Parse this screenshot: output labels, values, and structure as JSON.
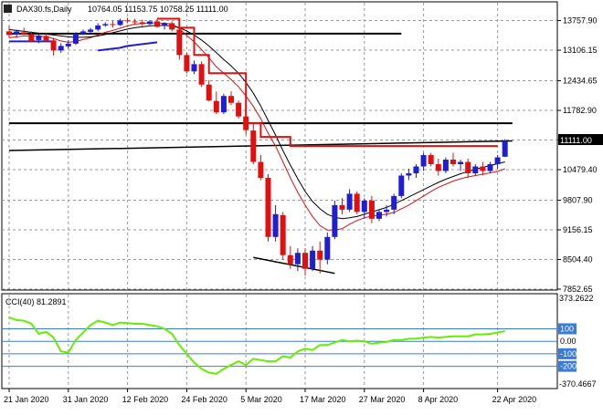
{
  "header": {
    "symbol": "DAX30.fs,Daily",
    "ohlc": "10764.05 11153.75 10758.25 11111.00"
  },
  "cci_panel": {
    "label": "CCI(40) 81.2891",
    "top_value": "373.2622",
    "bottom_value": "-370.4667",
    "levels": [
      "100",
      "0.00",
      "-100",
      "-200"
    ]
  },
  "price_badge": "11111.00",
  "colors": {
    "bull": "#1f1fd0",
    "bear": "#e01010",
    "ma_fast": "#e01010",
    "ma_slow": "#000000",
    "ma_blue": "#1f1fd0",
    "cci": "#66ee00",
    "level_line": "#3a7bd5",
    "badge_bg": "#000000"
  },
  "chart_data": {
    "type": "candlestick",
    "price_axis": {
      "ticks": [
        13757.9,
        13106.15,
        12434.65,
        11782.9,
        11131.15,
        10479.4,
        9807.9,
        9156.15,
        8504.4,
        7852.65
      ],
      "tick_labels": [
        "13757.90",
        "13106.15",
        "12434.65",
        "11782.90",
        "11131.15",
        "10479.40",
        "9807.90",
        "9156.15",
        "8504.40",
        "7852.65"
      ],
      "range": [
        7852.65,
        14150
      ]
    },
    "x_axis": {
      "tick_labels": [
        "21 Jan 2020",
        "31 Jan 2020",
        "12 Feb 2020",
        "24 Feb 2020",
        "5 Mar 2020",
        "17 Mar 2020",
        "27 Mar 2020",
        "8 Apr 2020",
        "22 Apr 2020"
      ],
      "tick_bar_index": [
        0,
        8,
        16,
        24,
        32,
        40,
        48,
        56,
        66
      ]
    },
    "candles": [
      {
        "o": 13520,
        "h": 13640,
        "l": 13380,
        "c": 13440
      },
      {
        "o": 13450,
        "h": 13560,
        "l": 13380,
        "c": 13520
      },
      {
        "o": 13500,
        "h": 13600,
        "l": 13440,
        "c": 13460
      },
      {
        "o": 13460,
        "h": 13520,
        "l": 13280,
        "c": 13300
      },
      {
        "o": 13330,
        "h": 13470,
        "l": 13260,
        "c": 13430
      },
      {
        "o": 13420,
        "h": 13480,
        "l": 13280,
        "c": 13320
      },
      {
        "o": 13320,
        "h": 13380,
        "l": 12990,
        "c": 13100
      },
      {
        "o": 13100,
        "h": 13260,
        "l": 13050,
        "c": 13200
      },
      {
        "o": 13190,
        "h": 13330,
        "l": 13140,
        "c": 13250
      },
      {
        "o": 13250,
        "h": 13500,
        "l": 13220,
        "c": 13470
      },
      {
        "o": 13470,
        "h": 13560,
        "l": 13440,
        "c": 13520
      },
      {
        "o": 13510,
        "h": 13600,
        "l": 13480,
        "c": 13560
      },
      {
        "o": 13560,
        "h": 13700,
        "l": 13520,
        "c": 13650
      },
      {
        "o": 13650,
        "h": 13720,
        "l": 13620,
        "c": 13680
      },
      {
        "o": 13680,
        "h": 13750,
        "l": 13600,
        "c": 13660
      },
      {
        "o": 13660,
        "h": 13800,
        "l": 13640,
        "c": 13760
      },
      {
        "o": 13760,
        "h": 13820,
        "l": 13700,
        "c": 13740
      },
      {
        "o": 13740,
        "h": 13800,
        "l": 13660,
        "c": 13720
      },
      {
        "o": 13720,
        "h": 13780,
        "l": 13640,
        "c": 13680
      },
      {
        "o": 13680,
        "h": 13760,
        "l": 13660,
        "c": 13740
      },
      {
        "o": 13740,
        "h": 13790,
        "l": 13600,
        "c": 13620
      },
      {
        "o": 13640,
        "h": 13720,
        "l": 13560,
        "c": 13700
      },
      {
        "o": 13700,
        "h": 13740,
        "l": 13520,
        "c": 13560
      },
      {
        "o": 13560,
        "h": 13620,
        "l": 12900,
        "c": 13000
      },
      {
        "o": 13000,
        "h": 13050,
        "l": 12600,
        "c": 12640
      },
      {
        "o": 12640,
        "h": 12880,
        "l": 12580,
        "c": 12800
      },
      {
        "o": 12800,
        "h": 12860,
        "l": 12300,
        "c": 12350
      },
      {
        "o": 12350,
        "h": 12450,
        "l": 11980,
        "c": 12000
      },
      {
        "o": 11990,
        "h": 12200,
        "l": 11700,
        "c": 11740
      },
      {
        "o": 11740,
        "h": 12150,
        "l": 11700,
        "c": 12100
      },
      {
        "o": 12100,
        "h": 12200,
        "l": 11900,
        "c": 11950
      },
      {
        "o": 11950,
        "h": 12000,
        "l": 11600,
        "c": 11650
      },
      {
        "o": 11650,
        "h": 11700,
        "l": 11250,
        "c": 11350
      },
      {
        "o": 11340,
        "h": 11500,
        "l": 10600,
        "c": 10650
      },
      {
        "o": 10650,
        "h": 10800,
        "l": 10250,
        "c": 10300
      },
      {
        "o": 10300,
        "h": 10380,
        "l": 8900,
        "c": 9000
      },
      {
        "o": 9000,
        "h": 9700,
        "l": 8900,
        "c": 9500
      },
      {
        "o": 9480,
        "h": 9550,
        "l": 8500,
        "c": 8600
      },
      {
        "o": 8600,
        "h": 8800,
        "l": 8300,
        "c": 8400
      },
      {
        "o": 8400,
        "h": 8750,
        "l": 8250,
        "c": 8650
      },
      {
        "o": 8650,
        "h": 8750,
        "l": 8150,
        "c": 8300
      },
      {
        "o": 8300,
        "h": 8800,
        "l": 8250,
        "c": 8700
      },
      {
        "o": 8700,
        "h": 8900,
        "l": 8200,
        "c": 8500
      },
      {
        "o": 8500,
        "h": 9100,
        "l": 8400,
        "c": 9000
      },
      {
        "o": 9000,
        "h": 9800,
        "l": 8950,
        "c": 9700
      },
      {
        "o": 9700,
        "h": 9850,
        "l": 9500,
        "c": 9600
      },
      {
        "o": 9600,
        "h": 10050,
        "l": 9550,
        "c": 9950
      },
      {
        "o": 9950,
        "h": 10000,
        "l": 9500,
        "c": 9550
      },
      {
        "o": 9550,
        "h": 9850,
        "l": 9400,
        "c": 9800
      },
      {
        "o": 9800,
        "h": 9900,
        "l": 9300,
        "c": 9400
      },
      {
        "o": 9400,
        "h": 9600,
        "l": 9350,
        "c": 9550
      },
      {
        "o": 9550,
        "h": 9700,
        "l": 9450,
        "c": 9600
      },
      {
        "o": 9600,
        "h": 9950,
        "l": 9500,
        "c": 9900
      },
      {
        "o": 9900,
        "h": 10400,
        "l": 9850,
        "c": 10350
      },
      {
        "o": 10350,
        "h": 10500,
        "l": 10250,
        "c": 10400
      },
      {
        "o": 10400,
        "h": 10600,
        "l": 10300,
        "c": 10550
      },
      {
        "o": 10550,
        "h": 10850,
        "l": 10450,
        "c": 10800
      },
      {
        "o": 10800,
        "h": 10850,
        "l": 10550,
        "c": 10600
      },
      {
        "o": 10600,
        "h": 10720,
        "l": 10350,
        "c": 10450
      },
      {
        "o": 10450,
        "h": 10750,
        "l": 10400,
        "c": 10700
      },
      {
        "o": 10700,
        "h": 10850,
        "l": 10550,
        "c": 10600
      },
      {
        "o": 10600,
        "h": 10700,
        "l": 10450,
        "c": 10650
      },
      {
        "o": 10650,
        "h": 10720,
        "l": 10300,
        "c": 10400
      },
      {
        "o": 10400,
        "h": 10600,
        "l": 10350,
        "c": 10550
      },
      {
        "o": 10550,
        "h": 10650,
        "l": 10350,
        "c": 10450
      },
      {
        "o": 10450,
        "h": 10650,
        "l": 10400,
        "c": 10600
      },
      {
        "o": 10600,
        "h": 10800,
        "l": 10500,
        "c": 10750
      },
      {
        "o": 10764.05,
        "h": 11153.75,
        "l": 10758.25,
        "c": 11111.0
      }
    ],
    "moving_averages": [
      {
        "color_key": "ma_fast",
        "values": [
          13380,
          13400,
          13420,
          13420,
          13410,
          13410,
          13360,
          13310,
          13280,
          13300,
          13340,
          13380,
          13440,
          13500,
          13540,
          13590,
          13640,
          13680,
          13690,
          13710,
          13700,
          13700,
          13680,
          13580,
          13430,
          13290,
          13120,
          12940,
          12740,
          12600,
          12460,
          12300,
          12100,
          11870,
          11600,
          11280,
          11000,
          10650,
          10300,
          9980,
          9700,
          9450,
          9250,
          9150,
          9150,
          9180,
          9280,
          9360,
          9420,
          9460,
          9480,
          9500,
          9540,
          9620,
          9700,
          9800,
          9900,
          10000,
          10090,
          10160,
          10230,
          10280,
          10320,
          10350,
          10380,
          10410,
          10440,
          10500
        ]
      },
      {
        "color_key": "ma_slow",
        "values": [
          13560,
          13540,
          13520,
          13500,
          13480,
          13460,
          13440,
          13420,
          13400,
          13390,
          13390,
          13400,
          13420,
          13450,
          13490,
          13530,
          13570,
          13600,
          13620,
          13640,
          13650,
          13650,
          13640,
          13600,
          13530,
          13440,
          13330,
          13200,
          13050,
          12900,
          12760,
          12600,
          12400,
          12160,
          11880,
          11560,
          11240,
          10900,
          10580,
          10280,
          10000,
          9780,
          9620,
          9500,
          9430,
          9400,
          9420,
          9450,
          9500,
          9550,
          9600,
          9650,
          9720,
          9800,
          9880,
          9960,
          10040,
          10120,
          10200,
          10270,
          10330,
          10390,
          10440,
          10490,
          10530,
          10570,
          10610,
          10650
        ]
      },
      {
        "color_key": "ma_blue",
        "start_index": 0,
        "values": [
          13300,
          13300,
          13300,
          13300,
          13300,
          13300,
          13300,
          null,
          null,
          null,
          null,
          null,
          13100,
          13120,
          13140,
          13160,
          13200,
          13220,
          13240,
          13260,
          13280
        ]
      }
    ],
    "step_line": {
      "color_key": "ma_fast",
      "points": [
        [
          20,
          13800
        ],
        [
          23,
          13600
        ],
        [
          25,
          13000
        ],
        [
          27,
          12600
        ],
        [
          30,
          12600
        ],
        [
          32,
          11500
        ],
        [
          34,
          11200
        ],
        [
          36,
          11200
        ],
        [
          38,
          11000
        ],
        [
          56,
          11000
        ],
        [
          66,
          11000
        ]
      ]
    },
    "horizontal_lines": [
      {
        "price": 13470,
        "from_bar": 0,
        "to_bar": 53
      },
      {
        "price": 11500,
        "from_bar": 0,
        "to_bar": 68
      }
    ],
    "trend_lines": [
      {
        "from": [
          0,
          10900
        ],
        "to": [
          68,
          11111
        ]
      },
      {
        "from": [
          33,
          8550
        ],
        "to": [
          44,
          8200
        ]
      }
    ],
    "cci": {
      "range": [
        -370.4667,
        373.2622
      ],
      "levels": [
        100,
        0,
        -100,
        -200
      ],
      "values": [
        190,
        170,
        165,
        140,
        60,
        75,
        30,
        -80,
        -90,
        10,
        70,
        130,
        165,
        150,
        130,
        150,
        145,
        140,
        140,
        130,
        120,
        100,
        60,
        -30,
        -100,
        -170,
        -220,
        -250,
        -260,
        -220,
        -190,
        -160,
        -190,
        -140,
        -150,
        -160,
        -160,
        -120,
        -130,
        -80,
        -60,
        -70,
        -30,
        -30,
        -10,
        10,
        0,
        5,
        0,
        -20,
        -10,
        -5,
        10,
        10,
        20,
        20,
        30,
        35,
        30,
        35,
        40,
        40,
        40,
        55,
        55,
        60,
        70,
        81.2891
      ]
    },
    "vertical_grid_bars": [
      0,
      8,
      16,
      24,
      32,
      40,
      48,
      56,
      66
    ]
  }
}
